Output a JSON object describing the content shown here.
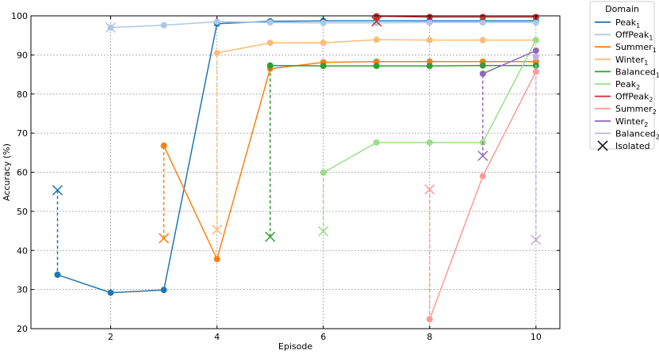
{
  "chart_data": {
    "type": "line",
    "title": "",
    "xlabel": "Episode",
    "ylabel": "Accuracy (%)",
    "xlim": [
      0.5,
      10.45
    ],
    "ylim": [
      20,
      100
    ],
    "xticks": [
      2,
      4,
      6,
      8,
      10
    ],
    "yticks": [
      20,
      30,
      40,
      50,
      60,
      70,
      80,
      90,
      100
    ],
    "grid": true,
    "legend_title": "Domain",
    "legend_position": "outside-right",
    "isolated_label": "Isolated",
    "series": [
      {
        "name": "Peak",
        "subscript": "1",
        "color": "#1f77b4",
        "x": [
          1,
          2,
          3,
          4,
          5,
          6,
          7,
          8,
          9,
          10
        ],
        "y": [
          33.8,
          29.2,
          29.9,
          98.0,
          98.6,
          98.7,
          98.7,
          98.7,
          98.7,
          98.7
        ],
        "isolated": {
          "x": 1,
          "y": 55.4
        }
      },
      {
        "name": "OffPeak",
        "subscript": "1",
        "color": "#aec7e8",
        "x": [
          2,
          3,
          4,
          5,
          6,
          7,
          8,
          9,
          10
        ],
        "y": [
          97.0,
          97.6,
          98.5,
          98.3,
          98.2,
          98.2,
          98.3,
          98.3,
          98.3
        ],
        "isolated": {
          "x": 2,
          "y": 97.0
        }
      },
      {
        "name": "Summer",
        "subscript": "1",
        "color": "#ff7f0e",
        "x": [
          3,
          4,
          5,
          6,
          7,
          8,
          9,
          10
        ],
        "y": [
          66.8,
          37.8,
          86.5,
          88.1,
          88.3,
          88.3,
          88.3,
          88.3
        ],
        "isolated": {
          "x": 3,
          "y": 43.1
        }
      },
      {
        "name": "Winter",
        "subscript": "1",
        "color": "#ffbb78",
        "x": [
          4,
          5,
          6,
          7,
          8,
          9,
          10
        ],
        "y": [
          90.5,
          93.1,
          93.1,
          93.9,
          93.8,
          93.8,
          93.8
        ],
        "isolated": {
          "x": 4,
          "y": 45.3
        }
      },
      {
        "name": "Balanced",
        "subscript": "1",
        "color": "#2ca02c",
        "x": [
          5,
          6,
          7,
          8,
          9,
          10
        ],
        "y": [
          87.3,
          87.2,
          87.2,
          87.2,
          87.3,
          87.3
        ],
        "isolated": {
          "x": 5,
          "y": 43.5
        }
      },
      {
        "name": "Peak",
        "subscript": "2",
        "color": "#98df8a",
        "x": [
          6,
          7,
          8,
          9,
          10
        ],
        "y": [
          59.9,
          67.6,
          67.6,
          67.6,
          93.8
        ],
        "isolated": {
          "x": 6,
          "y": 44.9
        }
      },
      {
        "name": "OffPeak",
        "subscript": "2",
        "color": "#d62728",
        "x": [
          7,
          8,
          9,
          10
        ],
        "y": [
          99.9,
          99.7,
          99.7,
          99.7
        ],
        "isolated": {
          "x": 7,
          "y": 98.6
        }
      },
      {
        "name": "Summer",
        "subscript": "2",
        "color": "#ff9896",
        "x": [
          8,
          9,
          10
        ],
        "y": [
          22.4,
          59.0,
          85.7
        ],
        "isolated": {
          "x": 8,
          "y": 55.6
        }
      },
      {
        "name": "Winter",
        "subscript": "2",
        "color": "#9467bd",
        "x": [
          9,
          10
        ],
        "y": [
          85.2,
          91.1
        ],
        "isolated": {
          "x": 9,
          "y": 64.2
        }
      },
      {
        "name": "Balanced",
        "subscript": "2",
        "color": "#c5b0d5",
        "x": [
          10
        ],
        "y": [
          89.5
        ],
        "isolated": {
          "x": 10,
          "y": 42.7
        }
      }
    ]
  }
}
